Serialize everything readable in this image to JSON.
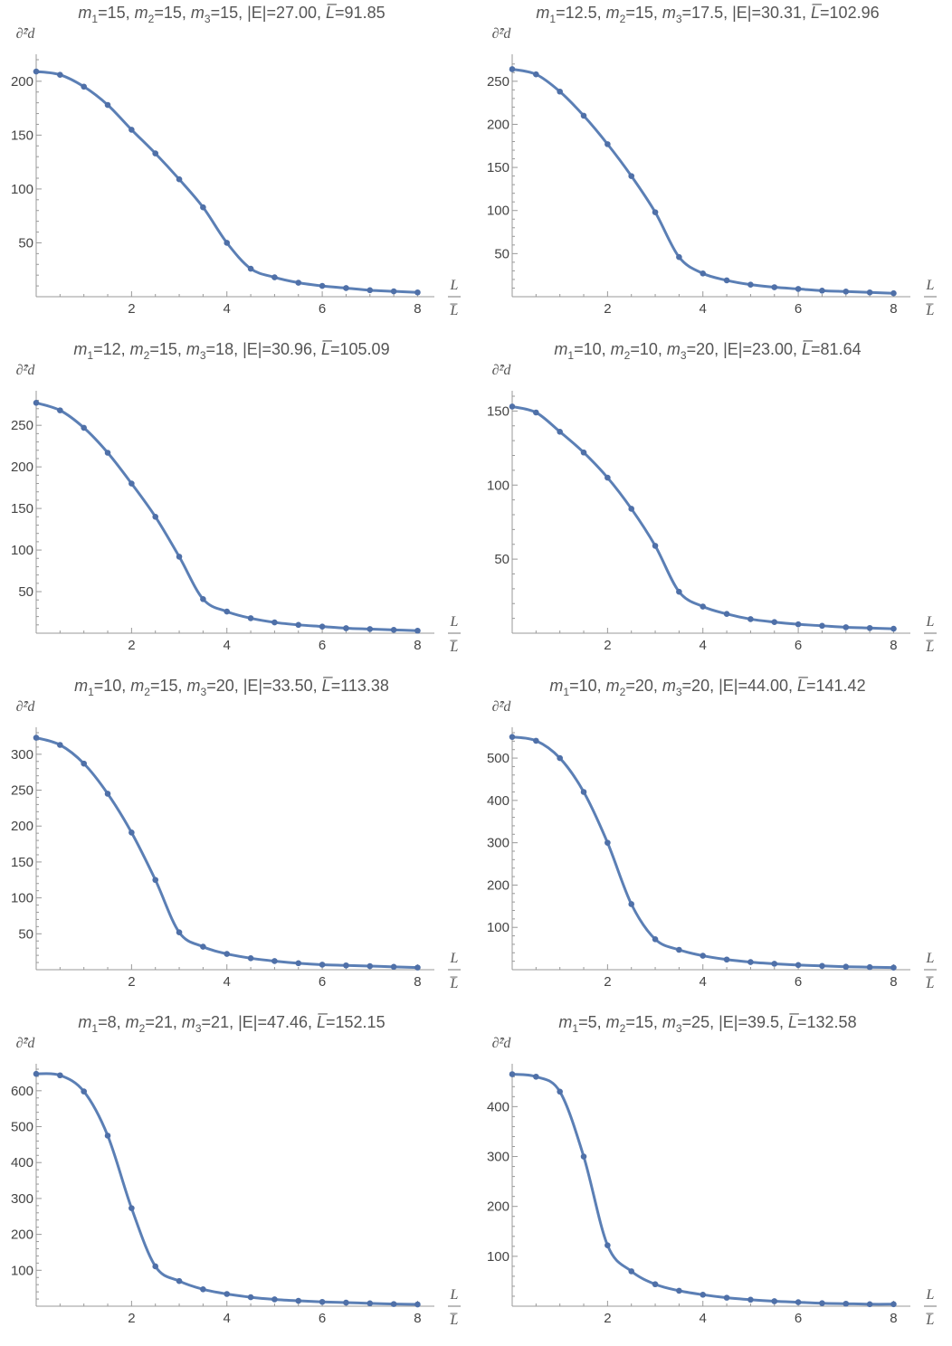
{
  "chart_data": [
    {
      "type": "line",
      "title": {
        "parts": [
          [
            "m",
            "italic"
          ],
          [
            "1",
            "sub"
          ],
          [
            "=15, ",
            ""
          ],
          [
            "m",
            "italic"
          ],
          [
            "2",
            "sub"
          ],
          [
            "=15, ",
            ""
          ],
          [
            "m",
            "italic"
          ],
          [
            "3",
            "sub"
          ],
          [
            "=15, |E|=27.00, ",
            ""
          ],
          [
            "L̅",
            "italic"
          ],
          [
            "=91.85",
            ""
          ]
        ]
      },
      "ylabel": "∂̂²d",
      "xlabel": "L / L̅",
      "xlim": [
        0,
        8.2
      ],
      "ylim": [
        0,
        220
      ],
      "xticks": [
        2,
        4,
        6,
        8
      ],
      "yticks": [
        50,
        100,
        150,
        200
      ],
      "x": [
        0,
        0.5,
        1,
        1.5,
        2,
        2.5,
        3,
        3.5,
        4,
        4.5,
        5,
        5.5,
        6,
        6.5,
        7,
        7.5,
        8
      ],
      "series": [
        {
          "values": [
            209,
            206,
            195,
            178,
            155,
            133,
            109,
            83,
            50,
            26,
            18,
            13,
            10,
            8,
            6,
            5,
            4
          ]
        }
      ]
    },
    {
      "type": "line",
      "title": {
        "parts": [
          [
            "m",
            "italic"
          ],
          [
            "1",
            "sub"
          ],
          [
            "=12.5, ",
            ""
          ],
          [
            "m",
            "italic"
          ],
          [
            "2",
            "sub"
          ],
          [
            "=15, ",
            ""
          ],
          [
            "m",
            "italic"
          ],
          [
            "3",
            "sub"
          ],
          [
            "=17.5, |E|=30.31, ",
            ""
          ],
          [
            "L̅",
            "italic"
          ],
          [
            "=102.96",
            ""
          ]
        ]
      },
      "ylabel": "∂̂²d",
      "xlabel": "L / L̅",
      "xlim": [
        0,
        8.2
      ],
      "ylim": [
        0,
        275
      ],
      "xticks": [
        2,
        4,
        6,
        8
      ],
      "yticks": [
        50,
        100,
        150,
        200,
        250
      ],
      "x": [
        0,
        0.5,
        1,
        1.5,
        2,
        2.5,
        3,
        3.5,
        4,
        4.5,
        5,
        5.5,
        6,
        6.5,
        7,
        7.5,
        8
      ],
      "series": [
        {
          "values": [
            264,
            258,
            238,
            210,
            177,
            140,
            98,
            46,
            27,
            19,
            14,
            11,
            9,
            7,
            6,
            5,
            4
          ]
        }
      ]
    },
    {
      "type": "line",
      "title": {
        "parts": [
          [
            "m",
            "italic"
          ],
          [
            "1",
            "sub"
          ],
          [
            "=12, ",
            ""
          ],
          [
            "m",
            "italic"
          ],
          [
            "2",
            "sub"
          ],
          [
            "=15, ",
            ""
          ],
          [
            "m",
            "italic"
          ],
          [
            "3",
            "sub"
          ],
          [
            "=18, |E|=30.96, ",
            ""
          ],
          [
            "L̅",
            "italic"
          ],
          [
            "=105.09",
            ""
          ]
        ]
      },
      "ylabel": "∂̂²d",
      "xlabel": "L / L̅",
      "xlim": [
        0,
        8.2
      ],
      "ylim": [
        0,
        285
      ],
      "xticks": [
        2,
        4,
        6,
        8
      ],
      "yticks": [
        50,
        100,
        150,
        200,
        250
      ],
      "x": [
        0,
        0.5,
        1,
        1.5,
        2,
        2.5,
        3,
        3.5,
        4,
        4.5,
        5,
        5.5,
        6,
        6.5,
        7,
        7.5,
        8
      ],
      "series": [
        {
          "values": [
            277,
            268,
            247,
            217,
            180,
            140,
            92,
            41,
            26,
            18,
            13,
            10,
            8,
            6,
            5,
            4,
            3
          ]
        }
      ]
    },
    {
      "type": "line",
      "title": {
        "parts": [
          [
            "m",
            "italic"
          ],
          [
            "1",
            "sub"
          ],
          [
            "=10, ",
            ""
          ],
          [
            "m",
            "italic"
          ],
          [
            "2",
            "sub"
          ],
          [
            "=10, ",
            ""
          ],
          [
            "m",
            "italic"
          ],
          [
            "3",
            "sub"
          ],
          [
            "=20, |E|=23.00, ",
            ""
          ],
          [
            "L̅",
            "italic"
          ],
          [
            "=81.64",
            ""
          ]
        ]
      },
      "ylabel": "∂̂²d",
      "xlabel": "L / L̅",
      "xlim": [
        0,
        8.2
      ],
      "ylim": [
        0,
        160
      ],
      "xticks": [
        2,
        4,
        6,
        8
      ],
      "yticks": [
        50,
        100,
        150
      ],
      "x": [
        0,
        0.5,
        1,
        1.5,
        2,
        2.5,
        3,
        3.5,
        4,
        4.5,
        5,
        5.5,
        6,
        6.5,
        7,
        7.5,
        8
      ],
      "series": [
        {
          "values": [
            153,
            149,
            136,
            122,
            105,
            84,
            59,
            28,
            18,
            13,
            9.5,
            7.5,
            6,
            5,
            4,
            3.5,
            3
          ]
        }
      ]
    },
    {
      "type": "line",
      "title": {
        "parts": [
          [
            "m",
            "italic"
          ],
          [
            "1",
            "sub"
          ],
          [
            "=10, ",
            ""
          ],
          [
            "m",
            "italic"
          ],
          [
            "2",
            "sub"
          ],
          [
            "=15, ",
            ""
          ],
          [
            "m",
            "italic"
          ],
          [
            "3",
            "sub"
          ],
          [
            "=20, |E|=33.50, ",
            ""
          ],
          [
            "L̅",
            "italic"
          ],
          [
            "=113.38",
            ""
          ]
        ]
      },
      "ylabel": "∂̂²d",
      "xlabel": "L / L̅",
      "xlim": [
        0,
        8.2
      ],
      "ylim": [
        0,
        330
      ],
      "xticks": [
        2,
        4,
        6,
        8
      ],
      "yticks": [
        50,
        100,
        150,
        200,
        250,
        300
      ],
      "x": [
        0,
        0.5,
        1,
        1.5,
        2,
        2.5,
        3,
        3.5,
        4,
        4.5,
        5,
        5.5,
        6,
        6.5,
        7,
        7.5,
        8
      ],
      "series": [
        {
          "values": [
            323,
            313,
            287,
            245,
            191,
            125,
            52,
            32,
            22,
            16,
            12,
            9,
            7,
            6,
            5,
            4,
            3
          ]
        }
      ]
    },
    {
      "type": "line",
      "title": {
        "parts": [
          [
            "m",
            "italic"
          ],
          [
            "1",
            "sub"
          ],
          [
            "=10, ",
            ""
          ],
          [
            "m",
            "italic"
          ],
          [
            "2",
            "sub"
          ],
          [
            "=20, ",
            ""
          ],
          [
            "m",
            "italic"
          ],
          [
            "3",
            "sub"
          ],
          [
            "=20, |E|=44.00, ",
            ""
          ],
          [
            "L̅",
            "italic"
          ],
          [
            "=141.42",
            ""
          ]
        ]
      },
      "ylabel": "∂̂²d",
      "xlabel": "L / L̅",
      "xlim": [
        0,
        8.2
      ],
      "ylim": [
        0,
        560
      ],
      "xticks": [
        2,
        4,
        6,
        8
      ],
      "yticks": [
        100,
        200,
        300,
        400,
        500
      ],
      "x": [
        0,
        0.5,
        1,
        1.5,
        2,
        2.5,
        3,
        3.5,
        4,
        4.5,
        5,
        5.5,
        6,
        6.5,
        7,
        7.5,
        8
      ],
      "series": [
        {
          "values": [
            550,
            541,
            500,
            420,
            300,
            155,
            72,
            47,
            33,
            24,
            18,
            14,
            11,
            9,
            7,
            6,
            5
          ]
        }
      ]
    },
    {
      "type": "line",
      "title": {
        "parts": [
          [
            "m",
            "italic"
          ],
          [
            "1",
            "sub"
          ],
          [
            "=8, ",
            ""
          ],
          [
            "m",
            "italic"
          ],
          [
            "2",
            "sub"
          ],
          [
            "=21, ",
            ""
          ],
          [
            "m",
            "italic"
          ],
          [
            "3",
            "sub"
          ],
          [
            "=21, |E|=47.46, ",
            ""
          ],
          [
            "L̅",
            "italic"
          ],
          [
            "=152.15",
            ""
          ]
        ]
      },
      "ylabel": "∂̂²d",
      "xlabel": "L / L̅",
      "xlim": [
        0,
        8.2
      ],
      "ylim": [
        0,
        660
      ],
      "xticks": [
        2,
        4,
        6,
        8
      ],
      "yticks": [
        100,
        200,
        300,
        400,
        500,
        600
      ],
      "x": [
        0,
        0.5,
        1,
        1.5,
        2,
        2.5,
        3,
        3.5,
        4,
        4.5,
        5,
        5.5,
        6,
        6.5,
        7,
        7.5,
        8
      ],
      "series": [
        {
          "values": [
            647,
            643,
            598,
            475,
            273,
            111,
            70,
            47,
            34,
            25,
            19,
            15,
            12,
            10,
            8,
            6,
            5
          ]
        }
      ]
    },
    {
      "type": "line",
      "title": {
        "parts": [
          [
            "m",
            "italic"
          ],
          [
            "1",
            "sub"
          ],
          [
            "=5, ",
            ""
          ],
          [
            "m",
            "italic"
          ],
          [
            "2",
            "sub"
          ],
          [
            "=15, ",
            ""
          ],
          [
            "m",
            "italic"
          ],
          [
            "3",
            "sub"
          ],
          [
            "=25, |E|=39.5, ",
            ""
          ],
          [
            "L̅",
            "italic"
          ],
          [
            "=132.58",
            ""
          ]
        ]
      },
      "ylabel": "∂̂²d",
      "xlabel": "L / L̅",
      "xlim": [
        0,
        8.2
      ],
      "ylim": [
        0,
        475
      ],
      "xticks": [
        2,
        4,
        6,
        8
      ],
      "yticks": [
        100,
        200,
        300,
        400
      ],
      "x": [
        0,
        0.5,
        1,
        1.5,
        2,
        2.5,
        3,
        3.5,
        4,
        4.5,
        5,
        5.5,
        6,
        6.5,
        7,
        7.5,
        8
      ],
      "series": [
        {
          "values": [
            465,
            460,
            430,
            300,
            122,
            70,
            44,
            31,
            23,
            17,
            13,
            10,
            8,
            6,
            5,
            4,
            4
          ]
        }
      ]
    }
  ]
}
